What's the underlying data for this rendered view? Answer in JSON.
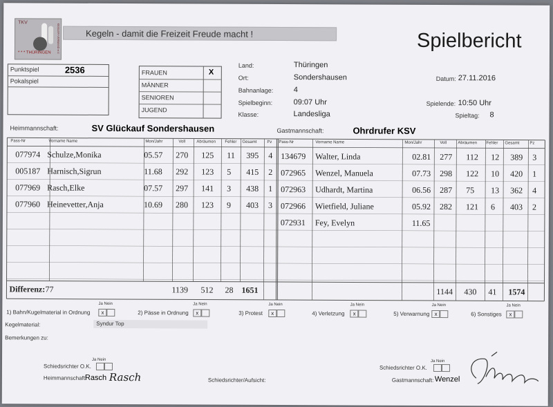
{
  "header": {
    "logo_top": "TKV",
    "logo_side": "KEGLER-VERBAND e.V.",
    "logo_bottom": "THÜRINGEN",
    "logo_stars": "* * *",
    "slogan": "Kegeln  -  damit die Freizeit Freude macht !",
    "title": "Spielbericht"
  },
  "game_type": {
    "punktspiel_label": "Punktspiel",
    "punktspiel_value": "2536",
    "pokalspiel_label": "Pokalspiel"
  },
  "category": {
    "rows": [
      "FRAUEN",
      "MÄNNER",
      "SENIOREN",
      "JUGEND"
    ],
    "mark": "X"
  },
  "info": {
    "land_label": "Land:",
    "land_value": "Thüringen",
    "ort_label": "Ort:",
    "ort_value": "Sondershausen",
    "datum_label": "Datum:",
    "datum_value": "27.11.2016",
    "bahnanlage_label": "Bahnanlage:",
    "bahnanlage_value": "4",
    "spielbeginn_label": "Spielbeginn:",
    "spielbeginn_value": "09:07 Uhr",
    "spielende_label": "Spielende:",
    "spielende_value": "10:50 Uhr",
    "klasse_label": "Klasse:",
    "klasse_value": "Landesliga",
    "spieltag_label": "Spieltag:",
    "spieltag_value": "8"
  },
  "teams": {
    "home_label": "Heimmannschaft:",
    "home_name": "SV Glückauf Sondershausen",
    "guest_label": "Gastmannschaft:",
    "guest_name": "Ohrdrufer KSV"
  },
  "table_headers": [
    "Pass-Nr",
    "Vorname Name",
    "Mon/Jahr",
    "Voll",
    "Abräumen",
    "Fehler",
    "Gesamt",
    "Pz"
  ],
  "home_players": [
    [
      "077974",
      "Schulze,Monika",
      "05.57",
      "270",
      "125",
      "11",
      "395",
      "4"
    ],
    [
      "005187",
      "Harnisch,Sigrun",
      "11.68",
      "292",
      "123",
      "5",
      "415",
      "2"
    ],
    [
      "077969",
      "Rasch,Elke",
      "07.57",
      "297",
      "141",
      "3",
      "438",
      "1"
    ],
    [
      "077960",
      "Heinevetter,Anja",
      "10.69",
      "280",
      "123",
      "9",
      "403",
      "3"
    ]
  ],
  "guest_players": [
    [
      "134679",
      "Walter, Linda",
      "02.81",
      "277",
      "112",
      "12",
      "389",
      "3"
    ],
    [
      "072965",
      "Wenzel, Manuela",
      "07.73",
      "298",
      "122",
      "10",
      "420",
      "1"
    ],
    [
      "072963",
      "Udhardt, Martina",
      "06.56",
      "287",
      "75",
      "13",
      "362",
      "4"
    ],
    [
      "072966",
      "Wietfield, Juliane",
      "05.92",
      "282",
      "121",
      "6",
      "403",
      "2"
    ],
    [
      "072931",
      "Fey, Evelyn",
      "11.65",
      "",
      "",
      "",
      "",
      ""
    ]
  ],
  "totals": {
    "diff_label": "Differenz:",
    "diff_value": "77",
    "home": {
      "voll": "1139",
      "abr": "512",
      "fehler": "28",
      "gesamt": "1651"
    },
    "guest": {
      "voll": "1144",
      "abr": "430",
      "fehler": "41",
      "gesamt": "1574"
    }
  },
  "checks": {
    "janein": "Ja  Nein",
    "items": [
      {
        "label": "1) Bahn/Kugelmaterial in Ordnung",
        "mark": "x"
      },
      {
        "label": "2) Pässe in Ordnung",
        "mark": "x"
      },
      {
        "label": "3) Protest",
        "mark": "x"
      },
      {
        "label": "4) Verletzung",
        "mark": "x"
      },
      {
        "label": "5) Verwarnung",
        "mark": "x"
      },
      {
        "label": "6) Sonstiges",
        "mark": "x"
      }
    ]
  },
  "footer": {
    "kegelmaterial_label": "Kegelmaterial:",
    "kegelmaterial_value": "Syndur Top",
    "bemerkungen_label": "Bemerkungen zu:",
    "schiri_label": "Schiedsrichter O.K.",
    "home_sig_label": "Heimmannschaft:",
    "home_sig_name": "Rasch",
    "home_sig_hand": "Rasch",
    "schiri_aufsicht_label": "Schiedsrichter/Aufsicht:",
    "guest_sig_label": "Gastmannschaft:",
    "guest_sig_name": "Wenzel"
  }
}
